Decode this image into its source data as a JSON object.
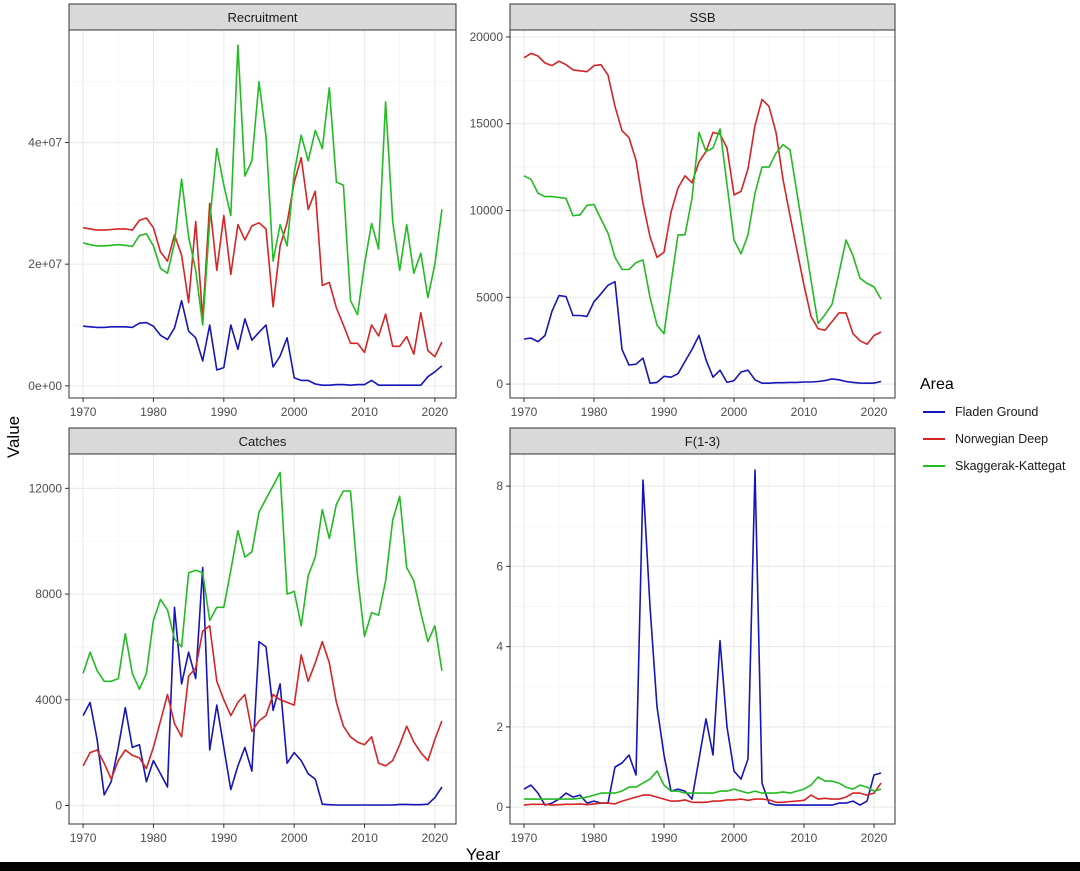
{
  "figure": {
    "xlabel": "Year",
    "ylabel": "Value",
    "legend_title": "Area",
    "legend_position": "right"
  },
  "colors": {
    "Fladen Ground": "#1515b8",
    "Norwegian Deep": "#d62424",
    "Skaggerak-Kattegat": "#22bb22",
    "strip_bg": "#d9d9d9",
    "grid_major": "#ebebeb",
    "grid_minor": "#f5f5f5",
    "axis_text": "#4d4d4d"
  },
  "chart_data": [
    {
      "type": "line",
      "title": "Recruitment",
      "xlim": [
        1968,
        2023
      ],
      "ylim": [
        -2000000,
        58500000
      ],
      "x_ticks": [
        1970,
        1980,
        1990,
        2000,
        2010,
        2020
      ],
      "y_ticks": [
        0,
        20000000,
        40000000
      ],
      "y_tick_labels": [
        "0e+00",
        "2e+07",
        "4e+07"
      ],
      "grid": true,
      "x": [
        1970,
        1971,
        1972,
        1973,
        1974,
        1975,
        1976,
        1977,
        1978,
        1979,
        1980,
        1981,
        1982,
        1983,
        1984,
        1985,
        1986,
        1987,
        1988,
        1989,
        1990,
        1991,
        1992,
        1993,
        1994,
        1995,
        1996,
        1997,
        1998,
        1999,
        2000,
        2001,
        2002,
        2003,
        2004,
        2005,
        2006,
        2007,
        2008,
        2009,
        2010,
        2011,
        2012,
        2013,
        2014,
        2015,
        2016,
        2017,
        2018,
        2019,
        2020,
        2021
      ],
      "series": [
        {
          "name": "Fladen Ground",
          "values": [
            9800000,
            9700000,
            9600000,
            9600000,
            9700000,
            9700000,
            9700000,
            9600000,
            10300000,
            10400000,
            9800000,
            8300000,
            7600000,
            9500000,
            14000000,
            9000000,
            7900000,
            4100000,
            10000000,
            2600000,
            3000000,
            10000000,
            6000000,
            11000000,
            7500000,
            8800000,
            10000000,
            3100000,
            4900000,
            7900000,
            1300000,
            900000,
            900000,
            300000,
            100000,
            100000,
            200000,
            200000,
            100000,
            200000,
            200000,
            900000,
            100000,
            100000,
            100000,
            100000,
            100000,
            100000,
            100000,
            1500000,
            2300000,
            3300000
          ]
        },
        {
          "name": "Norwegian Deep",
          "values": [
            26000000,
            25800000,
            25600000,
            25600000,
            25700000,
            25800000,
            25800000,
            25600000,
            27200000,
            27600000,
            26000000,
            22000000,
            20500000,
            24800000,
            21500000,
            13700000,
            27000000,
            11000000,
            30000000,
            19000000,
            28000000,
            18300000,
            26500000,
            24000000,
            26300000,
            26800000,
            25800000,
            13000000,
            23000000,
            26800000,
            33500000,
            37500000,
            29000000,
            32000000,
            16500000,
            17000000,
            12800000,
            10000000,
            7000000,
            7000000,
            5500000,
            10000000,
            8200000,
            11800000,
            6500000,
            6500000,
            8100000,
            5200000,
            12000000,
            5800000,
            4800000,
            7200000
          ]
        },
        {
          "name": "Skaggerak-Kattegat",
          "values": [
            23500000,
            23200000,
            23000000,
            23000000,
            23100000,
            23200000,
            23100000,
            22900000,
            24700000,
            25000000,
            23000000,
            19300000,
            18500000,
            23500000,
            34000000,
            24500000,
            19000000,
            10000000,
            27000000,
            39000000,
            33000000,
            28000000,
            56000000,
            34500000,
            37000000,
            50000000,
            41000000,
            20500000,
            26500000,
            23000000,
            35000000,
            41200000,
            37000000,
            42000000,
            39000000,
            49000000,
            33500000,
            33000000,
            14000000,
            11700000,
            20000000,
            26700000,
            22500000,
            46700000,
            27000000,
            19000000,
            26500000,
            18500000,
            21800000,
            14500000,
            20000000,
            29000000
          ]
        }
      ]
    },
    {
      "type": "line",
      "title": "SSB",
      "xlim": [
        1968,
        2023
      ],
      "ylim": [
        -800,
        20400
      ],
      "x_ticks": [
        1970,
        1980,
        1990,
        2000,
        2010,
        2020
      ],
      "y_ticks": [
        0,
        5000,
        10000,
        15000,
        20000
      ],
      "y_tick_labels": [
        "0",
        "5000",
        "10000",
        "15000",
        "20000"
      ],
      "grid": true,
      "x": [
        1970,
        1971,
        1972,
        1973,
        1974,
        1975,
        1976,
        1977,
        1978,
        1979,
        1980,
        1981,
        1982,
        1983,
        1984,
        1985,
        1986,
        1987,
        1988,
        1989,
        1990,
        1991,
        1992,
        1993,
        1994,
        1995,
        1996,
        1997,
        1998,
        1999,
        2000,
        2001,
        2002,
        2003,
        2004,
        2005,
        2006,
        2007,
        2008,
        2009,
        2010,
        2011,
        2012,
        2013,
        2014,
        2015,
        2016,
        2017,
        2018,
        2019,
        2020,
        2021
      ],
      "series": [
        {
          "name": "Fladen Ground",
          "values": [
            2600,
            2650,
            2450,
            2800,
            4200,
            5100,
            5050,
            3950,
            3950,
            3900,
            4750,
            5200,
            5700,
            5900,
            2000,
            1100,
            1150,
            1500,
            50,
            100,
            450,
            400,
            600,
            1300,
            2000,
            2800,
            1400,
            400,
            800,
            100,
            200,
            700,
            800,
            250,
            50,
            50,
            80,
            80,
            100,
            100,
            120,
            120,
            150,
            200,
            300,
            250,
            150,
            100,
            60,
            50,
            60,
            150
          ]
        },
        {
          "name": "Norwegian Deep",
          "values": [
            18800,
            19050,
            18900,
            18500,
            18350,
            18600,
            18400,
            18100,
            18050,
            18000,
            18350,
            18400,
            17800,
            16000,
            14600,
            14200,
            12900,
            10400,
            8500,
            7300,
            7600,
            9900,
            11300,
            12000,
            11600,
            12800,
            13400,
            14500,
            14400,
            13600,
            10900,
            11100,
            12400,
            14900,
            16400,
            16000,
            14500,
            11800,
            9700,
            7700,
            5700,
            3900,
            3200,
            3100,
            3600,
            4100,
            4100,
            2900,
            2500,
            2300,
            2800,
            3000
          ]
        },
        {
          "name": "Skaggerak-Kattegat",
          "values": [
            12000,
            11800,
            11000,
            10800,
            10800,
            10750,
            10700,
            9700,
            9750,
            10300,
            10350,
            9500,
            8700,
            7300,
            6600,
            6600,
            7000,
            7150,
            5000,
            3400,
            2900,
            5800,
            8600,
            8600,
            10700,
            14500,
            13400,
            13600,
            14700,
            11500,
            8300,
            7500,
            8600,
            11000,
            12500,
            12500,
            13300,
            13800,
            13500,
            11000,
            8500,
            6000,
            3500,
            4000,
            4600,
            6400,
            8300,
            7400,
            6100,
            5800,
            5600,
            4900
          ]
        }
      ]
    },
    {
      "type": "line",
      "title": "Catches",
      "xlim": [
        1968,
        2023
      ],
      "ylim": [
        -700,
        13300
      ],
      "x_ticks": [
        1970,
        1980,
        1990,
        2000,
        2010,
        2020
      ],
      "y_ticks": [
        0,
        4000,
        8000,
        12000
      ],
      "y_tick_labels": [
        "0",
        "4000",
        "8000",
        "12000"
      ],
      "grid": true,
      "x": [
        1970,
        1971,
        1972,
        1973,
        1974,
        1975,
        1976,
        1977,
        1978,
        1979,
        1980,
        1981,
        1982,
        1983,
        1984,
        1985,
        1986,
        1987,
        1988,
        1989,
        1990,
        1991,
        1992,
        1993,
        1994,
        1995,
        1996,
        1997,
        1998,
        1999,
        2000,
        2001,
        2002,
        2003,
        2004,
        2005,
        2006,
        2007,
        2008,
        2009,
        2010,
        2011,
        2012,
        2013,
        2014,
        2015,
        2016,
        2017,
        2018,
        2019,
        2020,
        2021
      ],
      "series": [
        {
          "name": "Fladen Ground",
          "values": [
            3400,
            3900,
            2500,
            400,
            900,
            2200,
            3700,
            2200,
            2300,
            900,
            1700,
            1200,
            700,
            7500,
            4600,
            5800,
            4800,
            9000,
            2100,
            3800,
            2200,
            600,
            1500,
            2200,
            1300,
            6200,
            6000,
            3600,
            4600,
            1600,
            2000,
            1700,
            1200,
            1000,
            50,
            30,
            20,
            20,
            20,
            20,
            20,
            20,
            20,
            20,
            20,
            40,
            40,
            30,
            30,
            50,
            300,
            700
          ]
        },
        {
          "name": "Norwegian Deep",
          "values": [
            1500,
            2000,
            2100,
            1600,
            1000,
            1700,
            2100,
            1900,
            1800,
            1400,
            2200,
            3200,
            4200,
            3100,
            2600,
            4900,
            5200,
            6600,
            6800,
            4700,
            4000,
            3400,
            3900,
            4200,
            2800,
            3200,
            3400,
            4200,
            4000,
            3900,
            3800,
            5700,
            4700,
            5400,
            6200,
            5400,
            3900,
            3000,
            2600,
            2400,
            2300,
            2600,
            1600,
            1500,
            1700,
            2300,
            3000,
            2400,
            2000,
            1700,
            2500,
            3200
          ]
        },
        {
          "name": "Skaggerak-Kattegat",
          "values": [
            5000,
            5800,
            5100,
            4700,
            4700,
            4800,
            6500,
            5000,
            4400,
            5000,
            7000,
            7800,
            7400,
            6300,
            6000,
            8800,
            8900,
            8800,
            7000,
            7500,
            7500,
            8900,
            10400,
            9400,
            9600,
            11100,
            11600,
            12100,
            12600,
            8000,
            8100,
            6800,
            8700,
            9400,
            11200,
            10100,
            11400,
            11900,
            11900,
            8700,
            6400,
            7300,
            7200,
            8500,
            10800,
            11700,
            9000,
            8500,
            7300,
            6200,
            6800,
            5100
          ]
        }
      ]
    },
    {
      "type": "line",
      "title": "F(1-3)",
      "xlim": [
        1968,
        2023
      ],
      "ylim": [
        -0.42,
        8.8
      ],
      "x_ticks": [
        1970,
        1980,
        1990,
        2000,
        2010,
        2020
      ],
      "y_ticks": [
        0,
        2,
        4,
        6,
        8
      ],
      "y_tick_labels": [
        "0",
        "2",
        "4",
        "6",
        "8"
      ],
      "grid": true,
      "x": [
        1970,
        1971,
        1972,
        1973,
        1974,
        1975,
        1976,
        1977,
        1978,
        1979,
        1980,
        1981,
        1982,
        1983,
        1984,
        1985,
        1986,
        1987,
        1988,
        1989,
        1990,
        1991,
        1992,
        1993,
        1994,
        1995,
        1996,
        1997,
        1998,
        1999,
        2000,
        2001,
        2002,
        2003,
        2004,
        2005,
        2006,
        2007,
        2008,
        2009,
        2010,
        2011,
        2012,
        2013,
        2014,
        2015,
        2016,
        2017,
        2018,
        2019,
        2020,
        2021
      ],
      "series": [
        {
          "name": "Fladen Ground",
          "values": [
            0.45,
            0.55,
            0.35,
            0.05,
            0.1,
            0.2,
            0.35,
            0.25,
            0.3,
            0.1,
            0.15,
            0.1,
            0.1,
            1.0,
            1.1,
            1.3,
            0.8,
            8.15,
            5.0,
            2.5,
            1.3,
            0.4,
            0.45,
            0.4,
            0.2,
            1.2,
            2.2,
            1.3,
            4.15,
            2.0,
            0.9,
            0.7,
            1.2,
            8.4,
            0.6,
            0.1,
            0.05,
            0.05,
            0.05,
            0.05,
            0.05,
            0.05,
            0.05,
            0.05,
            0.05,
            0.1,
            0.1,
            0.15,
            0.05,
            0.15,
            0.8,
            0.85
          ]
        },
        {
          "name": "Norwegian Deep",
          "values": [
            0.05,
            0.07,
            0.07,
            0.07,
            0.05,
            0.06,
            0.07,
            0.07,
            0.08,
            0.06,
            0.08,
            0.1,
            0.1,
            0.08,
            0.15,
            0.2,
            0.25,
            0.3,
            0.3,
            0.25,
            0.2,
            0.15,
            0.15,
            0.18,
            0.12,
            0.12,
            0.12,
            0.15,
            0.15,
            0.18,
            0.18,
            0.2,
            0.17,
            0.2,
            0.2,
            0.18,
            0.12,
            0.12,
            0.14,
            0.15,
            0.17,
            0.3,
            0.2,
            0.22,
            0.2,
            0.2,
            0.25,
            0.35,
            0.35,
            0.3,
            0.35,
            0.6
          ]
        },
        {
          "name": "Skaggerak-Kattegat",
          "values": [
            0.2,
            0.2,
            0.2,
            0.2,
            0.2,
            0.2,
            0.2,
            0.2,
            0.22,
            0.25,
            0.3,
            0.35,
            0.35,
            0.35,
            0.4,
            0.5,
            0.5,
            0.6,
            0.7,
            0.9,
            0.55,
            0.4,
            0.4,
            0.35,
            0.35,
            0.35,
            0.35,
            0.35,
            0.4,
            0.4,
            0.45,
            0.4,
            0.35,
            0.4,
            0.35,
            0.35,
            0.35,
            0.38,
            0.35,
            0.4,
            0.45,
            0.55,
            0.75,
            0.65,
            0.65,
            0.6,
            0.5,
            0.45,
            0.55,
            0.5,
            0.4,
            0.45
          ]
        }
      ]
    }
  ]
}
